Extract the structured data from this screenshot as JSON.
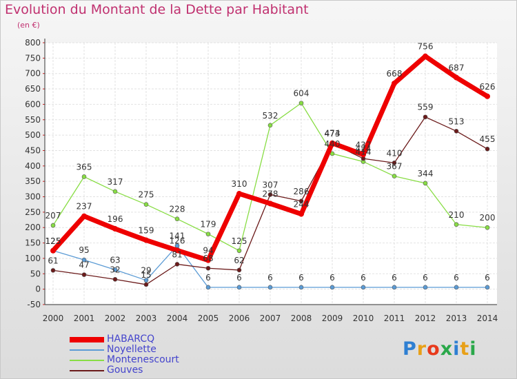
{
  "header": {
    "title": "Evolution du Montant de la Dette par Habitant",
    "subtitle": "(en €)"
  },
  "logo": {
    "text": "Proxiti",
    "letter_colors": [
      "#2e7fd2",
      "#e8a018",
      "#e83a1c",
      "#2aa84a",
      "#2e7fd2",
      "#e8a018",
      "#2aa84a"
    ]
  },
  "chart_data": {
    "type": "line",
    "title": "Evolution du Montant de la Dette par Habitant",
    "subtitle": "(en €)",
    "x": [
      "2000",
      "2001",
      "2002",
      "2003",
      "2004",
      "2005",
      "2006",
      "2007",
      "2008",
      "2009",
      "2010",
      "2011",
      "2012",
      "2013",
      "2014"
    ],
    "yticks": [
      "800",
      "750",
      "700",
      "650",
      "600",
      "550",
      "500",
      "450",
      "400",
      "350",
      "300",
      "250",
      "200",
      "150",
      "100",
      "50",
      "0",
      "-50"
    ],
    "ylim": [
      -50,
      800
    ],
    "grid": true,
    "legend_position": "bottom-left",
    "series": [
      {
        "name": "HABARCQ",
        "color": "#ee0000",
        "values": [
          125,
          237,
          196,
          159,
          126,
          94,
          310,
          278,
          244,
          474,
          437,
          668,
          756,
          687,
          626
        ]
      },
      {
        "name": "Noyellette",
        "color": "#5b9bd5",
        "values": [
          125,
          95,
          63,
          29,
          141,
          6,
          6,
          6,
          6,
          6,
          6,
          6,
          6,
          6,
          6
        ]
      },
      {
        "name": "Montenescourt",
        "color": "#88dd44",
        "values": [
          207,
          365,
          317,
          275,
          228,
          179,
          125,
          532,
          604,
          440,
          414,
          367,
          344,
          210,
          200
        ]
      },
      {
        "name": "Gouves",
        "color": "#6b1a1a",
        "values": [
          61,
          47,
          32,
          15,
          81,
          68,
          62,
          307,
          286,
          473,
          424,
          410,
          559,
          513,
          455
        ]
      }
    ]
  }
}
